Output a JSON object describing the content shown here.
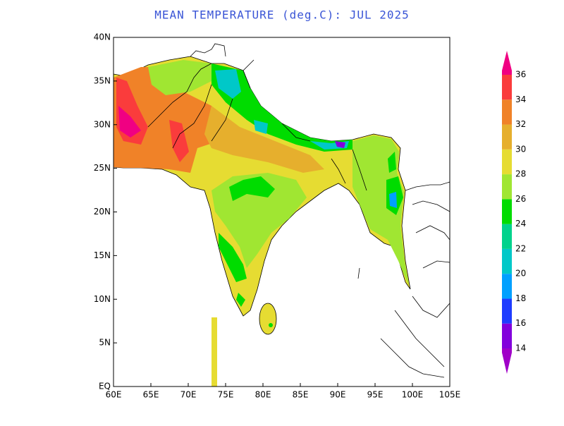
{
  "title": "MEAN TEMPERATURE (deg.C): JUL 2025",
  "map": {
    "xlim": [
      60,
      105
    ],
    "ylim": [
      0,
      40
    ],
    "xticks": [
      {
        "value": 60,
        "label": "60E"
      },
      {
        "value": 65,
        "label": "65E"
      },
      {
        "value": 70,
        "label": "70E"
      },
      {
        "value": 75,
        "label": "75E"
      },
      {
        "value": 80,
        "label": "80E"
      },
      {
        "value": 85,
        "label": "85E"
      },
      {
        "value": 90,
        "label": "90E"
      },
      {
        "value": 95,
        "label": "95E"
      },
      {
        "value": 100,
        "label": "100E"
      },
      {
        "value": 105,
        "label": "105E"
      }
    ],
    "yticks": [
      {
        "value": 0,
        "label": "EQ"
      },
      {
        "value": 5,
        "label": "5N"
      },
      {
        "value": 10,
        "label": "10N"
      },
      {
        "value": 15,
        "label": "15N"
      },
      {
        "value": 20,
        "label": "20N"
      },
      {
        "value": 25,
        "label": "25N"
      },
      {
        "value": 30,
        "label": "30N"
      },
      {
        "value": 35,
        "label": "35N"
      },
      {
        "value": 40,
        "label": "40N"
      }
    ]
  },
  "colorbar": {
    "levels": [
      14,
      16,
      18,
      20,
      22,
      24,
      26,
      28,
      30,
      32,
      34,
      36
    ],
    "colors": [
      "#a000c8",
      "#8200dc",
      "#1e3cff",
      "#00a0ff",
      "#00c8c8",
      "#00d28c",
      "#00dc00",
      "#a0e632",
      "#e6dc32",
      "#e6af2d",
      "#f08228",
      "#fa3c3c",
      "#f00082"
    ]
  }
}
